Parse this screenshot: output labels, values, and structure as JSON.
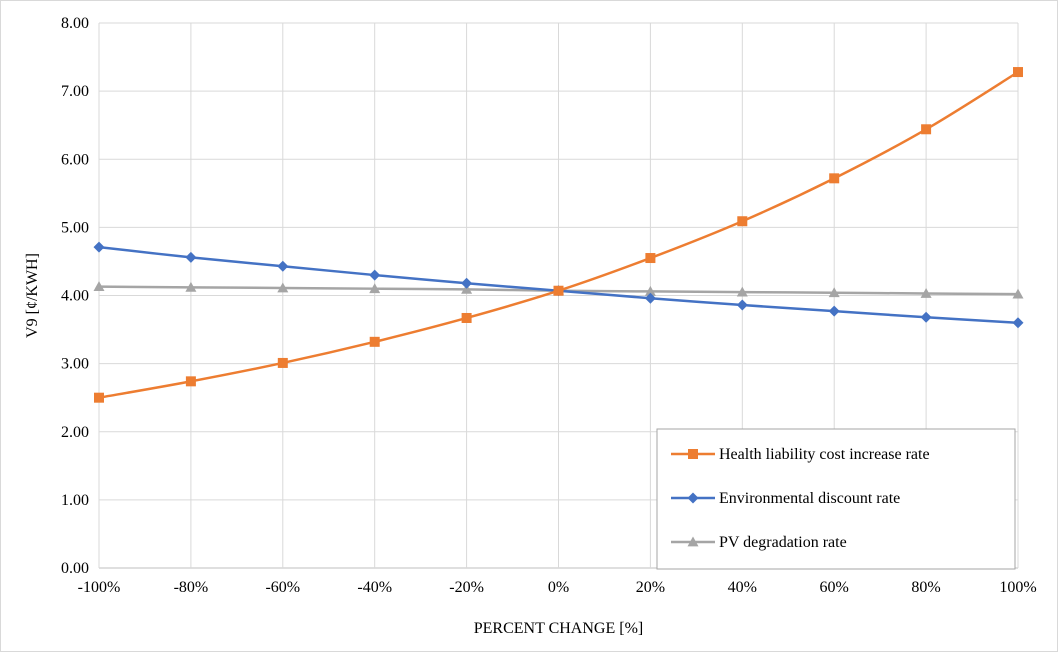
{
  "chart_data": {
    "type": "line",
    "title": "",
    "xlabel": "PERCENT CHANGE [%]",
    "ylabel": "V9 [¢/KWH]",
    "ylim": [
      0,
      8
    ],
    "y_ticks": [
      "0.00",
      "1.00",
      "2.00",
      "3.00",
      "4.00",
      "5.00",
      "6.00",
      "7.00",
      "8.00"
    ],
    "categories": [
      "-100%",
      "-80%",
      "-60%",
      "-40%",
      "-20%",
      "0%",
      "20%",
      "40%",
      "60%",
      "80%",
      "100%"
    ],
    "grid": true,
    "legend_position": "bottom-right",
    "series": [
      {
        "name": "Health liability cost increase rate",
        "color": "#ed7d31",
        "marker": "square",
        "values": [
          2.5,
          2.74,
          3.01,
          3.32,
          3.67,
          4.07,
          4.55,
          5.09,
          5.72,
          6.44,
          7.28
        ]
      },
      {
        "name": "Environmental discount rate",
        "color": "#4472c4",
        "marker": "diamond",
        "values": [
          4.71,
          4.56,
          4.43,
          4.3,
          4.18,
          4.07,
          3.96,
          3.86,
          3.77,
          3.68,
          3.6
        ]
      },
      {
        "name": "PV degradation rate",
        "color": "#a5a5a5",
        "marker": "triangle",
        "values": [
          4.13,
          4.12,
          4.11,
          4.1,
          4.09,
          4.07,
          4.06,
          4.05,
          4.04,
          4.03,
          4.02
        ]
      }
    ]
  }
}
